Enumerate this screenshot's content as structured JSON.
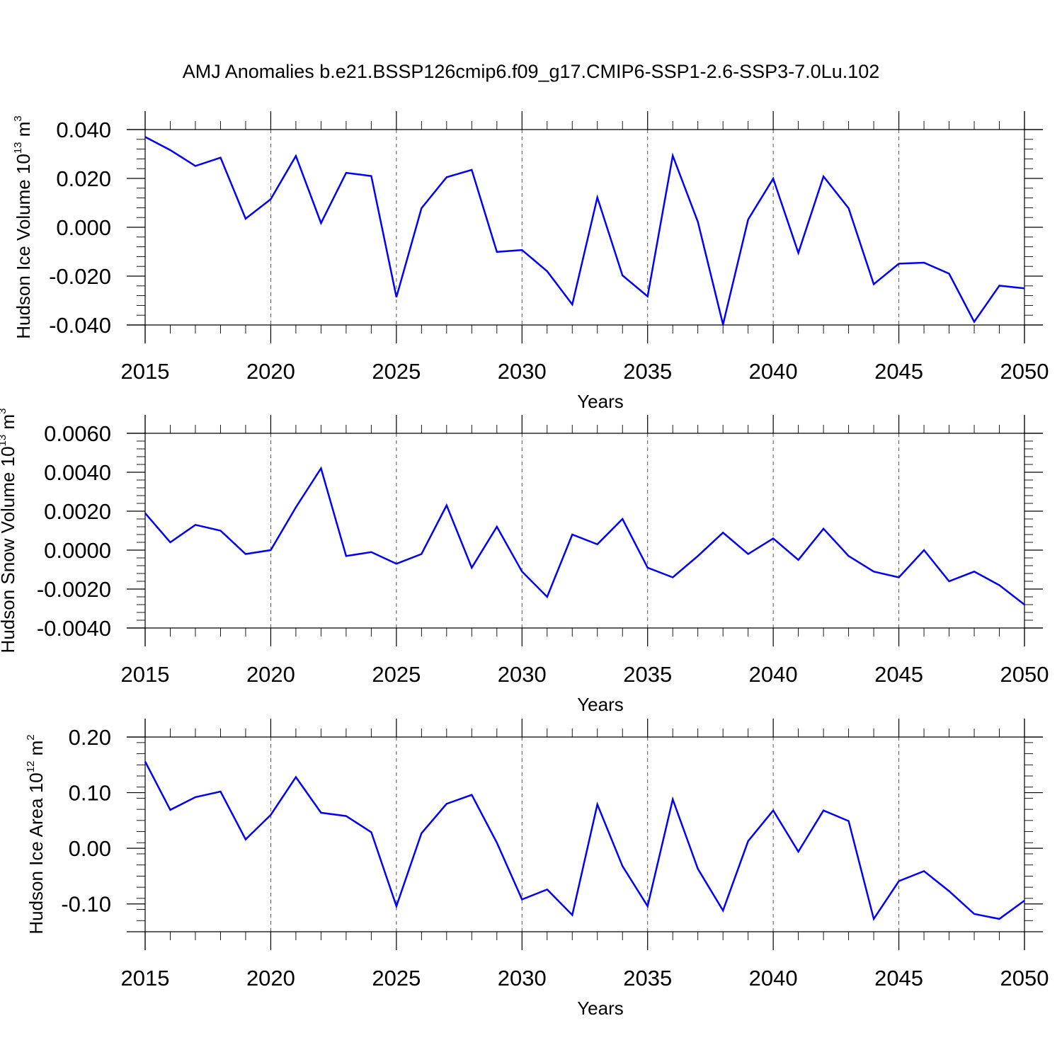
{
  "title": "AMJ Anomalies b.e21.BSSP126cmip6.f09_g17.CMIP6-SSP1-2.6-SSP3-7.0Lu.102",
  "chart_data": [
    {
      "type": "line",
      "ylabel": "Hudson Ice Volume 10",
      "ylabel_exp": "13",
      "ylabel_unit": "m",
      "ylabel_unit_exp": "3",
      "xlabel": "Years",
      "xlim": [
        2015,
        2050
      ],
      "ylim": [
        -0.04,
        0.04
      ],
      "yticks": [
        -0.04,
        -0.02,
        0.0,
        0.02,
        0.04
      ],
      "ytick_labels": [
        "-0.040",
        "-0.020",
        "0.000",
        "0.020",
        "0.040"
      ],
      "xticks": [
        2015,
        2020,
        2025,
        2030,
        2035,
        2040,
        2045,
        2050
      ],
      "xtick_labels": [
        "2015",
        "2020",
        "2025",
        "2030",
        "2035",
        "2040",
        "2045",
        "2050"
      ],
      "line_color": "#0000ff",
      "x": [
        2015,
        2016,
        2017,
        2018,
        2019,
        2020,
        2021,
        2022,
        2023,
        2024,
        2025,
        2026,
        2027,
        2028,
        2029,
        2030,
        2031,
        2032,
        2033,
        2034,
        2035,
        2036,
        2037,
        2038,
        2039,
        2040,
        2041,
        2042,
        2043,
        2044,
        2045,
        2046,
        2047,
        2048,
        2049,
        2050
      ],
      "values": [
        0.037,
        0.0316,
        0.0251,
        0.0285,
        0.0035,
        0.0115,
        0.0292,
        0.0017,
        0.0223,
        0.021,
        -0.0286,
        0.0078,
        0.0205,
        0.0235,
        -0.0101,
        -0.0093,
        -0.018,
        -0.0316,
        0.0122,
        -0.0197,
        -0.0283,
        0.0293,
        0.0022,
        -0.0398,
        0.0032,
        0.0199,
        -0.0105,
        0.0208,
        0.0078,
        -0.0233,
        -0.0149,
        -0.0145,
        -0.019,
        -0.0387,
        -0.0239,
        -0.025
      ]
    },
    {
      "type": "line",
      "ylabel": "Hudson Snow Volume 10",
      "ylabel_exp": "13",
      "ylabel_unit": "m",
      "ylabel_unit_exp": "3",
      "xlabel": "Years",
      "xlim": [
        2015,
        2050
      ],
      "ylim": [
        -0.004,
        0.006
      ],
      "yticks": [
        -0.004,
        -0.002,
        0.0,
        0.002,
        0.004,
        0.006
      ],
      "ytick_labels": [
        "-0.0040",
        "-0.0020",
        "0.0000",
        "0.0020",
        "0.0040",
        "0.0060"
      ],
      "xticks": [
        2015,
        2020,
        2025,
        2030,
        2035,
        2040,
        2045,
        2050
      ],
      "xtick_labels": [
        "2015",
        "2020",
        "2025",
        "2030",
        "2035",
        "2040",
        "2045",
        "2050"
      ],
      "line_color": "#0000ff",
      "x": [
        2015,
        2016,
        2017,
        2018,
        2019,
        2020,
        2021,
        2022,
        2023,
        2024,
        2025,
        2026,
        2027,
        2028,
        2029,
        2030,
        2031,
        2032,
        2033,
        2034,
        2035,
        2036,
        2037,
        2038,
        2039,
        2040,
        2041,
        2042,
        2043,
        2044,
        2045,
        2046,
        2047,
        2048,
        2049,
        2050
      ],
      "values": [
        0.0019,
        0.0004,
        0.0013,
        0.001,
        -0.0002,
        0.0,
        0.0022,
        0.0042,
        -0.0003,
        -0.0001,
        -0.0007,
        -0.0002,
        0.0023,
        -0.0009,
        0.0012,
        -0.0011,
        -0.0024,
        0.0008,
        0.0003,
        0.0016,
        -0.0009,
        -0.0014,
        -0.0003,
        0.0009,
        -0.0002,
        0.0006,
        -0.0005,
        0.0011,
        -0.0003,
        -0.0011,
        -0.0014,
        0.0,
        -0.0016,
        -0.0011,
        -0.0018,
        -0.0028
      ]
    },
    {
      "type": "line",
      "ylabel": "Hudson Ice Area 10",
      "ylabel_exp": "12",
      "ylabel_unit": "m",
      "ylabel_unit_exp": "2",
      "xlabel": "Years",
      "xlim": [
        2015,
        2050
      ],
      "ylim": [
        -0.15,
        0.2
      ],
      "yticks": [
        -0.1,
        0.0,
        0.1,
        0.2
      ],
      "ytick_labels": [
        "-0.10",
        "0.00",
        "0.10",
        "0.20"
      ],
      "xticks": [
        2015,
        2020,
        2025,
        2030,
        2035,
        2040,
        2045,
        2050
      ],
      "xtick_labels": [
        "2015",
        "2020",
        "2025",
        "2030",
        "2035",
        "2040",
        "2045",
        "2050"
      ],
      "line_color": "#0000ff",
      "x": [
        2015,
        2016,
        2017,
        2018,
        2019,
        2020,
        2021,
        2022,
        2023,
        2024,
        2025,
        2026,
        2027,
        2028,
        2029,
        2030,
        2031,
        2032,
        2033,
        2034,
        2035,
        2036,
        2037,
        2038,
        2039,
        2040,
        2041,
        2042,
        2043,
        2044,
        2045,
        2046,
        2047,
        2048,
        2049,
        2050
      ],
      "values": [
        0.156,
        0.069,
        0.092,
        0.102,
        0.016,
        0.06,
        0.128,
        0.064,
        0.058,
        0.029,
        -0.104,
        0.027,
        0.08,
        0.096,
        0.01,
        -0.092,
        -0.074,
        -0.12,
        0.079,
        -0.032,
        -0.104,
        0.088,
        -0.037,
        -0.112,
        0.013,
        0.068,
        -0.006,
        0.068,
        0.049,
        -0.127,
        -0.059,
        -0.041,
        -0.077,
        -0.118,
        -0.127,
        -0.094
      ]
    }
  ]
}
